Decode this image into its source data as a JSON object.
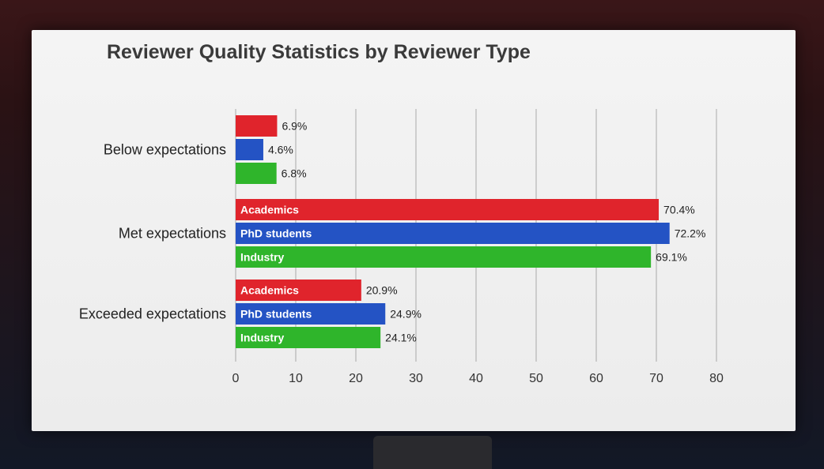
{
  "slide": {
    "title": "Reviewer Quality Statistics by Reviewer Type"
  },
  "chart_data": {
    "type": "bar",
    "orientation": "horizontal",
    "title": "Reviewer Quality Statistics by Reviewer Type",
    "categories": [
      "Below expectations",
      "Met expectations",
      "Exceeded expectations"
    ],
    "series": [
      {
        "name": "Academics",
        "color": "#e0242c",
        "values": [
          6.9,
          70.4,
          20.9
        ],
        "labels": [
          "6.9%",
          "70.4%",
          "20.9%"
        ],
        "bar_labels": [
          "",
          "Academics",
          "Academics"
        ]
      },
      {
        "name": "PhD students",
        "color": "#2453c4",
        "values": [
          4.6,
          72.2,
          24.9
        ],
        "labels": [
          "4.6%",
          "72.2%",
          "24.9%"
        ],
        "bar_labels": [
          "",
          "PhD students",
          "PhD students"
        ]
      },
      {
        "name": "Industry",
        "color": "#2fb52b",
        "values": [
          6.8,
          69.1,
          24.1
        ],
        "labels": [
          "6.8%",
          "69.1%",
          "24.1%"
        ],
        "bar_labels": [
          "",
          "Industry",
          "Industry"
        ]
      }
    ],
    "xlim": [
      0,
      80
    ],
    "xticks": [
      "0",
      "10",
      "20",
      "30",
      "40",
      "50",
      "60",
      "70",
      "80"
    ],
    "grid": "vertical",
    "legend": "none"
  }
}
